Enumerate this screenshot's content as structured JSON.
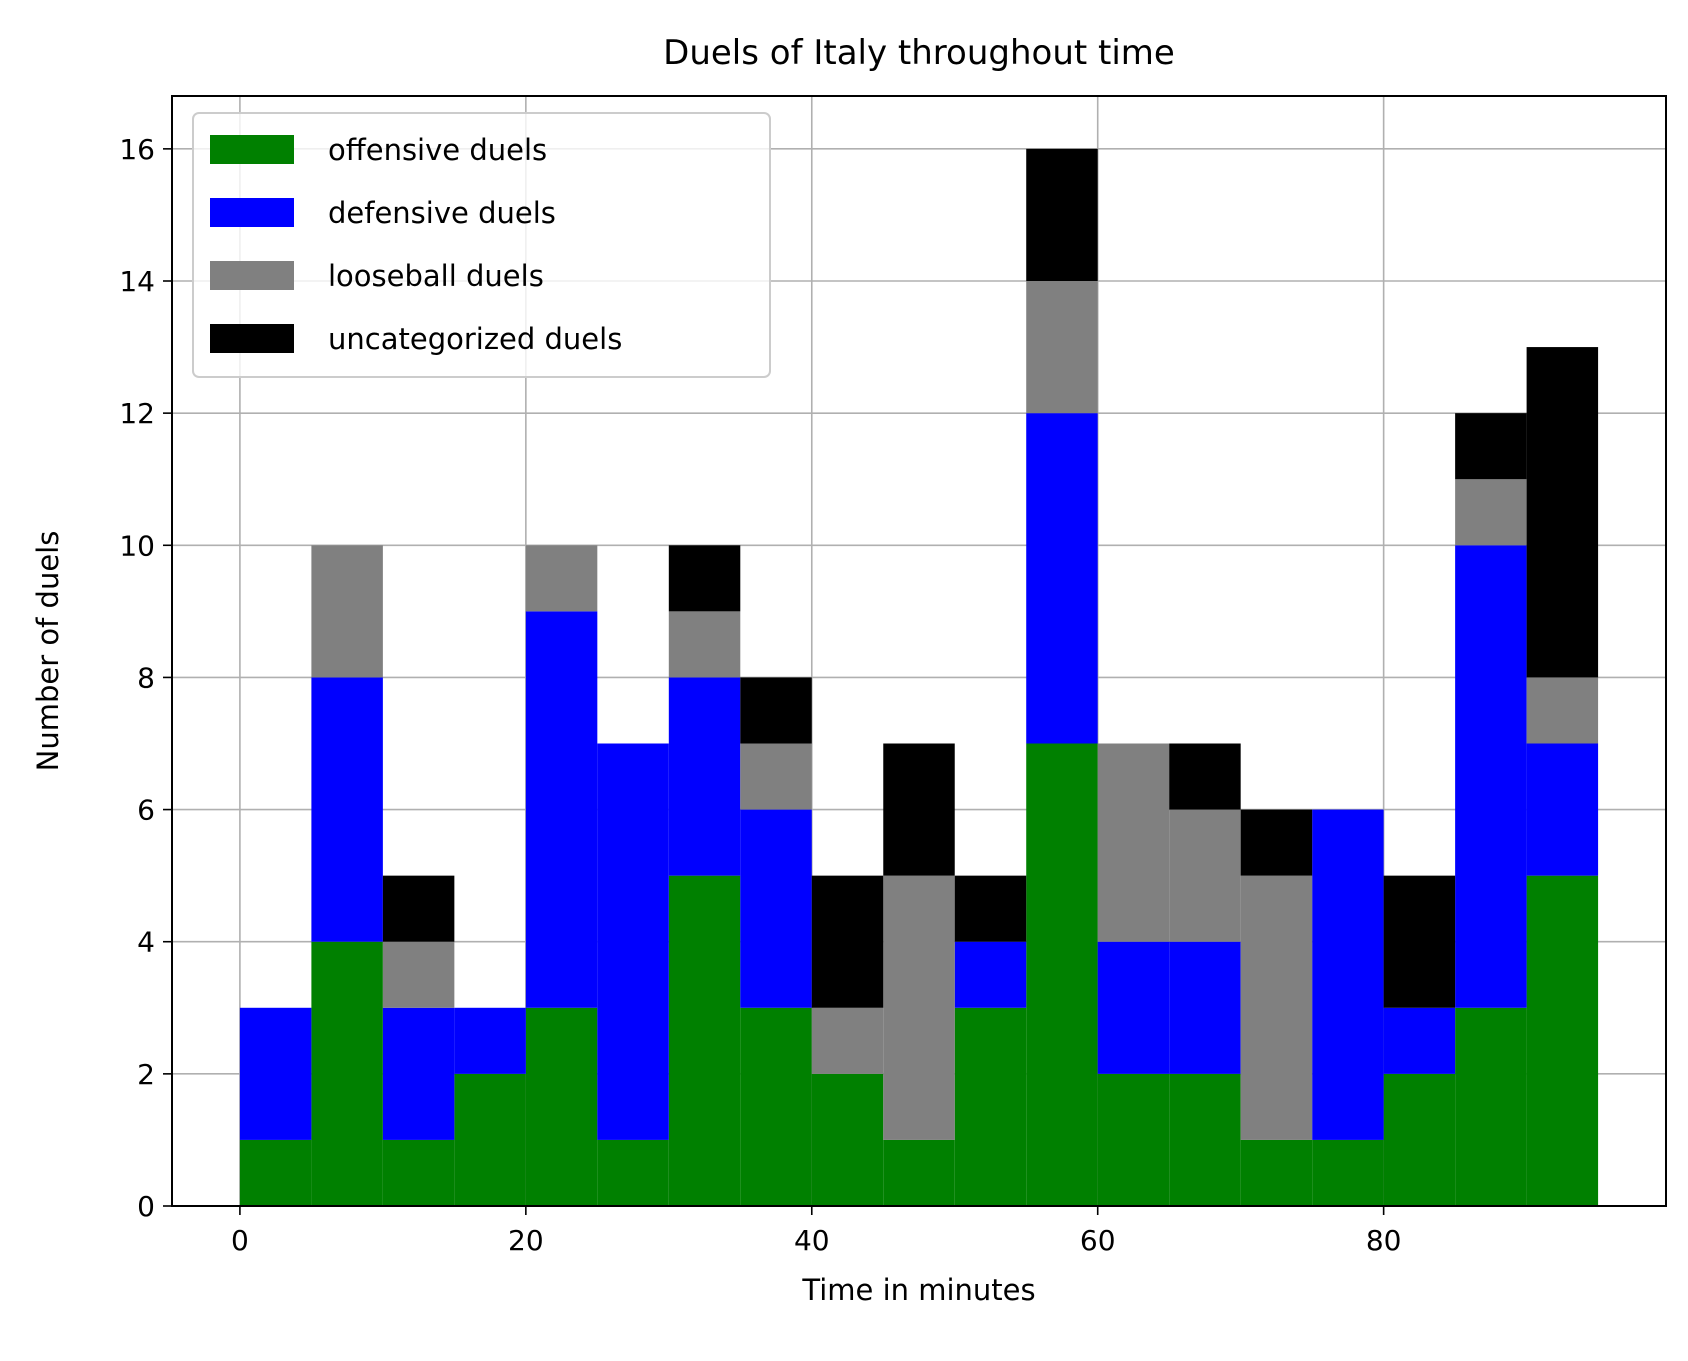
{
  "chart_data": {
    "type": "bar",
    "stacked": true,
    "title": "Duels of Italy throughout time",
    "xlabel": "Time in minutes",
    "ylabel": "Number of duels",
    "bin_width": 5,
    "x": [
      0,
      5,
      10,
      15,
      20,
      25,
      30,
      35,
      40,
      45,
      50,
      55,
      60,
      65,
      70,
      75,
      80,
      85,
      90
    ],
    "xlim": [
      -4.75,
      99.75
    ],
    "ylim": [
      0,
      16.8
    ],
    "xticks": [
      0,
      20,
      40,
      60,
      80
    ],
    "yticks": [
      0,
      2,
      4,
      6,
      8,
      10,
      12,
      14,
      16
    ],
    "grid": true,
    "legend_position": "upper-left",
    "series": [
      {
        "name": "offensive duels",
        "color": "#008000",
        "values": [
          1,
          4,
          1,
          2,
          3,
          1,
          5,
          3,
          2,
          1,
          3,
          7,
          2,
          2,
          1,
          1,
          2,
          3,
          5
        ]
      },
      {
        "name": "defensive duels",
        "color": "#0000ff",
        "values": [
          2,
          4,
          2,
          1,
          6,
          6,
          3,
          3,
          0,
          0,
          1,
          5,
          2,
          2,
          0,
          5,
          1,
          7,
          2
        ]
      },
      {
        "name": "looseball duels",
        "color": "#808080",
        "values": [
          0,
          2,
          1,
          0,
          1,
          0,
          1,
          1,
          1,
          4,
          0,
          2,
          3,
          2,
          4,
          0,
          0,
          1,
          1
        ]
      },
      {
        "name": "uncategorized duels",
        "color": "#000000",
        "values": [
          0,
          0,
          1,
          0,
          0,
          0,
          1,
          1,
          2,
          2,
          1,
          2,
          0,
          1,
          1,
          0,
          2,
          1,
          5
        ]
      }
    ]
  }
}
